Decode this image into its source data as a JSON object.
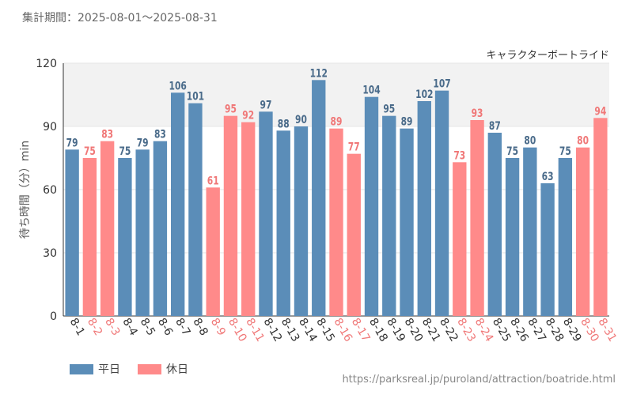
{
  "header": {
    "period_text": "集計期間：2025-08-01～2025-08-31"
  },
  "footer": {
    "source_url": "https://parksreal.jp/puroland/attraction/boatride.html"
  },
  "legend": [
    {
      "label": "平日",
      "color": "#5b8db8"
    },
    {
      "label": "休日",
      "color": "#ff8a8a"
    }
  ],
  "colors": {
    "weekday_label": "#4a6b8a",
    "holiday_label": "#f07878",
    "band_fill": "#f2f2f2"
  },
  "chart_data": {
    "type": "bar",
    "title": "キャラクターボートライド",
    "xlabel": "",
    "ylabel": "待ち時間（分）min",
    "ylim": [
      0,
      120
    ],
    "yticks": [
      0,
      30,
      60,
      90,
      120
    ],
    "shaded_band": [
      90,
      120
    ],
    "categories": [
      "8-1",
      "8-2",
      "8-3",
      "8-4",
      "8-5",
      "8-6",
      "8-7",
      "8-8",
      "8-9",
      "8-10",
      "8-11",
      "8-12",
      "8-13",
      "8-14",
      "8-15",
      "8-16",
      "8-17",
      "8-18",
      "8-19",
      "8-20",
      "8-21",
      "8-22",
      "8-23",
      "8-24",
      "8-25",
      "8-26",
      "8-27",
      "8-28",
      "8-29",
      "8-30",
      "8-31"
    ],
    "values": [
      79,
      75,
      83,
      75,
      79,
      83,
      106,
      101,
      61,
      95,
      92,
      97,
      88,
      90,
      112,
      89,
      77,
      104,
      95,
      89,
      102,
      107,
      73,
      93,
      87,
      75,
      80,
      63,
      75,
      80,
      94
    ],
    "day_type": [
      "平日",
      "休日",
      "休日",
      "平日",
      "平日",
      "平日",
      "平日",
      "平日",
      "休日",
      "休日",
      "休日",
      "平日",
      "平日",
      "平日",
      "平日",
      "休日",
      "休日",
      "平日",
      "平日",
      "平日",
      "平日",
      "平日",
      "休日",
      "休日",
      "平日",
      "平日",
      "平日",
      "平日",
      "平日",
      "休日",
      "休日"
    ]
  }
}
